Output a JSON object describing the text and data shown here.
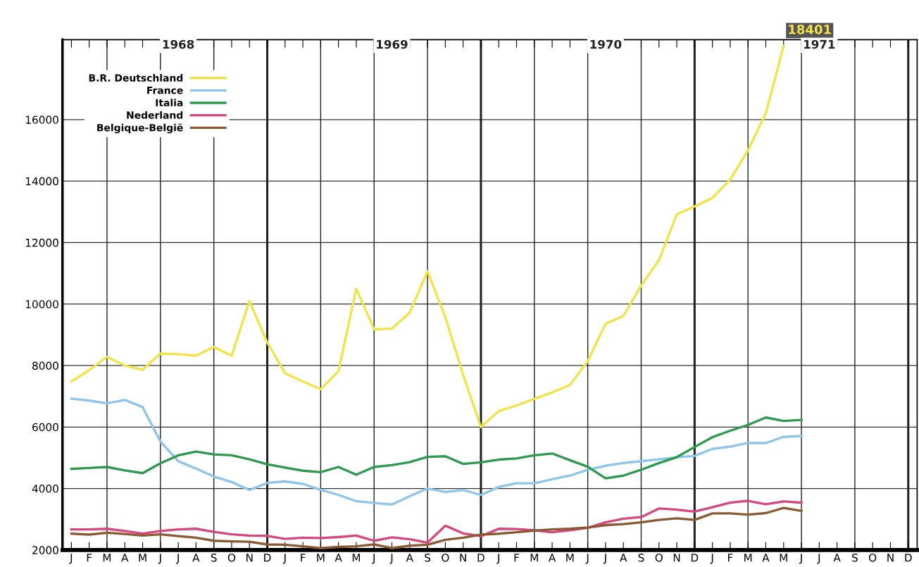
{
  "chart_data": {
    "type": "line",
    "categories": [
      "J",
      "F",
      "M",
      "A",
      "M",
      "J",
      "J",
      "A",
      "S",
      "O",
      "N",
      "D",
      "J",
      "F",
      "M",
      "A",
      "M",
      "J",
      "J",
      "A",
      "S",
      "O",
      "N",
      "D",
      "J",
      "F",
      "M",
      "A",
      "M",
      "J",
      "J",
      "A",
      "S",
      "O",
      "N",
      "D",
      "J",
      "F",
      "M",
      "A",
      "M",
      "J",
      "J",
      "A",
      "S",
      "O",
      "N",
      "D"
    ],
    "series": [
      {
        "name": "B.R. Deutschland",
        "color": "#f2e448",
        "values": [
          7480,
          7850,
          8280,
          8000,
          7860,
          8390,
          8370,
          8320,
          8600,
          8320,
          10100,
          8750,
          7750,
          7480,
          7230,
          7820,
          10500,
          9180,
          9200,
          9720,
          11070,
          9570,
          7700,
          6000,
          6520,
          6700,
          6920,
          7120,
          7370,
          8150,
          9360,
          9610,
          10600,
          11430,
          12920,
          13180,
          13450,
          14050,
          15000,
          16200,
          18401,
          null,
          null,
          null,
          null,
          null,
          null,
          null
        ],
        "value_labels": [
          null,
          null,
          null,
          null,
          null,
          null,
          null,
          null,
          null,
          null,
          null,
          null,
          null,
          null,
          null,
          null,
          null,
          null,
          null,
          null,
          null,
          null,
          null,
          null,
          null,
          null,
          null,
          null,
          null,
          null,
          null,
          null,
          null,
          null,
          null,
          null,
          null,
          null,
          null,
          null,
          "18401",
          null,
          null,
          null,
          null,
          null,
          null,
          null
        ]
      },
      {
        "name": "France",
        "color": "#8cc6ea",
        "values": [
          6920,
          6860,
          6770,
          6880,
          6650,
          5530,
          4890,
          4650,
          4390,
          4210,
          3950,
          4180,
          4230,
          4150,
          3960,
          3790,
          3590,
          3530,
          3480,
          3750,
          4000,
          3890,
          3950,
          3790,
          4050,
          4170,
          4170,
          4300,
          4420,
          4610,
          4740,
          4830,
          4890,
          4950,
          5020,
          5060,
          5290,
          5360,
          5480,
          5480,
          5680,
          5710,
          null,
          null,
          null,
          null,
          null,
          null
        ]
      },
      {
        "name": "Italia",
        "color": "#2e9a50",
        "values": [
          4640,
          4670,
          4700,
          4590,
          4500,
          4820,
          5080,
          5200,
          5110,
          5080,
          4950,
          4790,
          4680,
          4580,
          4530,
          4700,
          4450,
          4700,
          4760,
          4860,
          5030,
          5050,
          4800,
          4850,
          4940,
          4980,
          5080,
          5140,
          4920,
          4710,
          4330,
          4420,
          4610,
          4830,
          5020,
          5350,
          5670,
          5880,
          6070,
          6310,
          6200,
          6230,
          null,
          null,
          null,
          null,
          null,
          null
        ]
      },
      {
        "name": "Nederland",
        "color": "#d8467e",
        "values": [
          2670,
          2670,
          2690,
          2620,
          2530,
          2620,
          2670,
          2690,
          2590,
          2510,
          2470,
          2460,
          2360,
          2400,
          2390,
          2420,
          2470,
          2300,
          2410,
          2350,
          2240,
          2790,
          2540,
          2450,
          2690,
          2680,
          2640,
          2580,
          2640,
          2720,
          2900,
          3020,
          3070,
          3350,
          3310,
          3250,
          3390,
          3540,
          3600,
          3490,
          3580,
          3540,
          null,
          null,
          null,
          null,
          null,
          null
        ]
      },
      {
        "name": "Belgique-België",
        "color": "#8b5a32",
        "values": [
          2530,
          2500,
          2560,
          2520,
          2470,
          2510,
          2450,
          2400,
          2300,
          2280,
          2270,
          2180,
          2170,
          2120,
          2060,
          2100,
          2120,
          2180,
          2060,
          2140,
          2170,
          2330,
          2400,
          2500,
          2530,
          2580,
          2630,
          2670,
          2690,
          2730,
          2810,
          2840,
          2900,
          2980,
          3030,
          2980,
          3190,
          3190,
          3150,
          3200,
          3370,
          3270,
          null,
          null,
          null,
          null,
          null,
          null
        ]
      }
    ],
    "annotations": [
      "1968",
      "1969",
      "1970",
      "1971"
    ],
    "ylim": [
      2000,
      18600
    ],
    "yticks": [
      2000,
      4000,
      6000,
      8000,
      10000,
      12000,
      14000,
      16000
    ],
    "grid": true,
    "legend": "top left",
    "marker": "none",
    "line_style": "solid"
  }
}
